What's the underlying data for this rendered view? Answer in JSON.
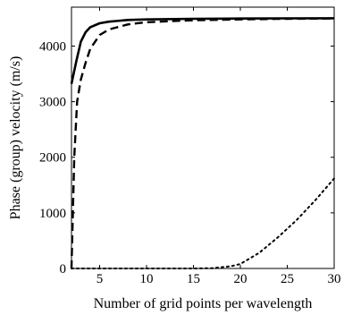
{
  "chart_data": {
    "type": "line",
    "title": "",
    "xlabel": "Number of grid points per wavelength",
    "ylabel": "Phase (group) velocity (m/s)",
    "xlim": [
      2,
      30
    ],
    "ylim": [
      0,
      4700
    ],
    "x_ticks": [
      5,
      10,
      15,
      20,
      25,
      30
    ],
    "y_ticks": [
      0,
      1000,
      2000,
      3000,
      4000
    ],
    "grid": false,
    "series": [
      {
        "style": "solid",
        "color": "#000000",
        "x": [
          2,
          2.5,
          3,
          3.5,
          4,
          5,
          6,
          8,
          10,
          15,
          20,
          25,
          30
        ],
        "y": [
          3320,
          3720,
          4080,
          4250,
          4340,
          4410,
          4440,
          4470,
          4480,
          4490,
          4495,
          4498,
          4500
        ]
      },
      {
        "style": "dashed",
        "color": "#000000",
        "x": [
          2,
          2.3,
          2.6,
          3,
          3.5,
          4,
          5,
          6,
          8,
          10,
          15,
          20,
          25,
          30
        ],
        "y": [
          0,
          2000,
          3000,
          3400,
          3700,
          3950,
          4200,
          4300,
          4390,
          4430,
          4465,
          4480,
          4490,
          4495
        ]
      },
      {
        "style": "dotted",
        "color": "#000000",
        "x": [
          2,
          5,
          10,
          15,
          17,
          19,
          20,
          22,
          24,
          26,
          28,
          30
        ],
        "y": [
          0,
          0,
          0,
          0,
          5,
          40,
          80,
          280,
          560,
          870,
          1230,
          1620
        ]
      }
    ]
  }
}
